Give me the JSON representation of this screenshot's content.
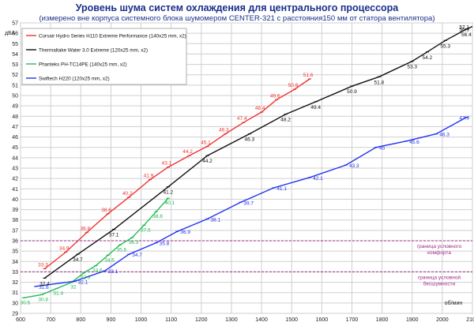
{
  "chart_data": {
    "type": "line",
    "title": "Уровень шума систем охлаждения для центрального процессора",
    "subtitle": "(измерено вне корпуса системного блока шумомером CENTER-321 с расстояния150 мм от статора вентилятора)",
    "ylabel": "дБА",
    "xlabel": "об/мин",
    "xlim": [
      600,
      2100
    ],
    "ylim": [
      29,
      57
    ],
    "xticks": [
      600,
      700,
      800,
      900,
      1000,
      1100,
      1200,
      1300,
      1400,
      1500,
      1600,
      1700,
      1800,
      1900,
      2000,
      2100
    ],
    "yticks": [
      29,
      30,
      31,
      32,
      33,
      34,
      35,
      36,
      37,
      38,
      39,
      40,
      41,
      42,
      43,
      44,
      45,
      46,
      47,
      48,
      49,
      50,
      51,
      52,
      53,
      54,
      55,
      56,
      57
    ],
    "grid": true,
    "legend_position": "top-left",
    "series": [
      {
        "name": "Corsair Hydro Series H110  Extreme Performance (140x25  mm,  x2)",
        "color": "#ee3333",
        "points": [
          [
            680,
            33.3
          ],
          [
            750,
            34.9
          ],
          [
            820,
            36.8
          ],
          [
            890,
            38.6
          ],
          [
            960,
            40.2
          ],
          [
            1030,
            41.9
          ],
          [
            1090,
            43.1
          ],
          [
            1160,
            44.2
          ],
          [
            1220,
            45.1
          ],
          [
            1280,
            46.3
          ],
          [
            1340,
            47.4
          ],
          [
            1400,
            48.4
          ],
          [
            1450,
            49.6
          ],
          [
            1510,
            50.6
          ],
          [
            1560,
            51.6
          ]
        ],
        "labels": [
          "33.3",
          "34.9",
          "36.8",
          "38.6",
          "40.2",
          "41.9",
          "43.1",
          "44.2",
          "45.1",
          "46.3",
          "47.4",
          "48.4",
          "49.6",
          "50.6",
          "51.6"
        ]
      },
      {
        "name": "Thermaltake Water 3.0  Extreme (120x25  mm,  x2)",
        "color": "#111111",
        "points": [
          [
            680,
            32.4
          ],
          [
            790,
            34.7
          ],
          [
            910,
            37.1
          ],
          [
            1090,
            41.2
          ],
          [
            1220,
            44.2
          ],
          [
            1360,
            46.3
          ],
          [
            1480,
            48.2
          ],
          [
            1580,
            49.4
          ],
          [
            1700,
            50.9
          ],
          [
            1790,
            51.8
          ],
          [
            1900,
            53.3
          ],
          [
            1950,
            54.2
          ],
          [
            2010,
            55.3
          ],
          [
            2080,
            56.4
          ],
          [
            2120,
            56.9
          ],
          [
            2150,
            57.1
          ]
        ],
        "labels": [
          "32.4",
          "34.7",
          "37.1",
          "41.2",
          "44.2",
          "46.3",
          "48.2",
          "49.4",
          "50.9",
          "51.8",
          "53.3",
          "54.2",
          "55.3",
          "56.4",
          "56.9",
          "57.1"
        ]
      },
      {
        "name": "Phanteks PH-TC14PE  (140x25  mm,  x2)",
        "color": "#22bb55",
        "points": [
          [
            610,
            30.5
          ],
          [
            670,
            30.8
          ],
          [
            720,
            31.4
          ],
          [
            770,
            32.0
          ],
          [
            810,
            32.9
          ],
          [
            850,
            33.6
          ],
          [
            890,
            34.6
          ],
          [
            930,
            35.6
          ],
          [
            970,
            36.3
          ],
          [
            1010,
            37.5
          ],
          [
            1050,
            38.8
          ],
          [
            1090,
            40.1
          ]
        ],
        "labels": [
          "30.5",
          "30.8",
          "31.4",
          "32",
          "32.9",
          "33.6",
          "34.6",
          "35.6",
          "36.3",
          "37.5",
          "38.8",
          "40.1"
        ]
      },
      {
        "name": "Swiftech H220 (120x25  mm,  x2)",
        "color": "#2233ee",
        "points": [
          [
            650,
            31.6
          ],
          [
            780,
            32.1
          ],
          [
            880,
            33.1
          ],
          [
            960,
            34.7
          ],
          [
            1050,
            35.8
          ],
          [
            1120,
            36.9
          ],
          [
            1220,
            38.1
          ],
          [
            1330,
            39.7
          ],
          [
            1440,
            41.1
          ],
          [
            1560,
            42.1
          ],
          [
            1680,
            43.3
          ],
          [
            1780,
            45
          ],
          [
            1880,
            45.6
          ],
          [
            1980,
            46.3
          ],
          [
            2080,
            47.9
          ]
        ],
        "labels": [
          "31.6",
          "32.1",
          "33.1",
          "34.7",
          "35.8",
          "36.9",
          "38.1",
          "39.7",
          "41.1",
          "42.1",
          "43.3",
          "45",
          "45.6",
          "46.3",
          "47.9"
        ]
      }
    ],
    "thresholds": [
      {
        "y": 36,
        "label_lines": [
          "граница условного",
          "комфорта"
        ],
        "color": "#a02a8a"
      },
      {
        "y": 33,
        "label_lines": [
          "граница условной",
          "бесшумности"
        ],
        "color": "#a02a8a"
      }
    ]
  }
}
